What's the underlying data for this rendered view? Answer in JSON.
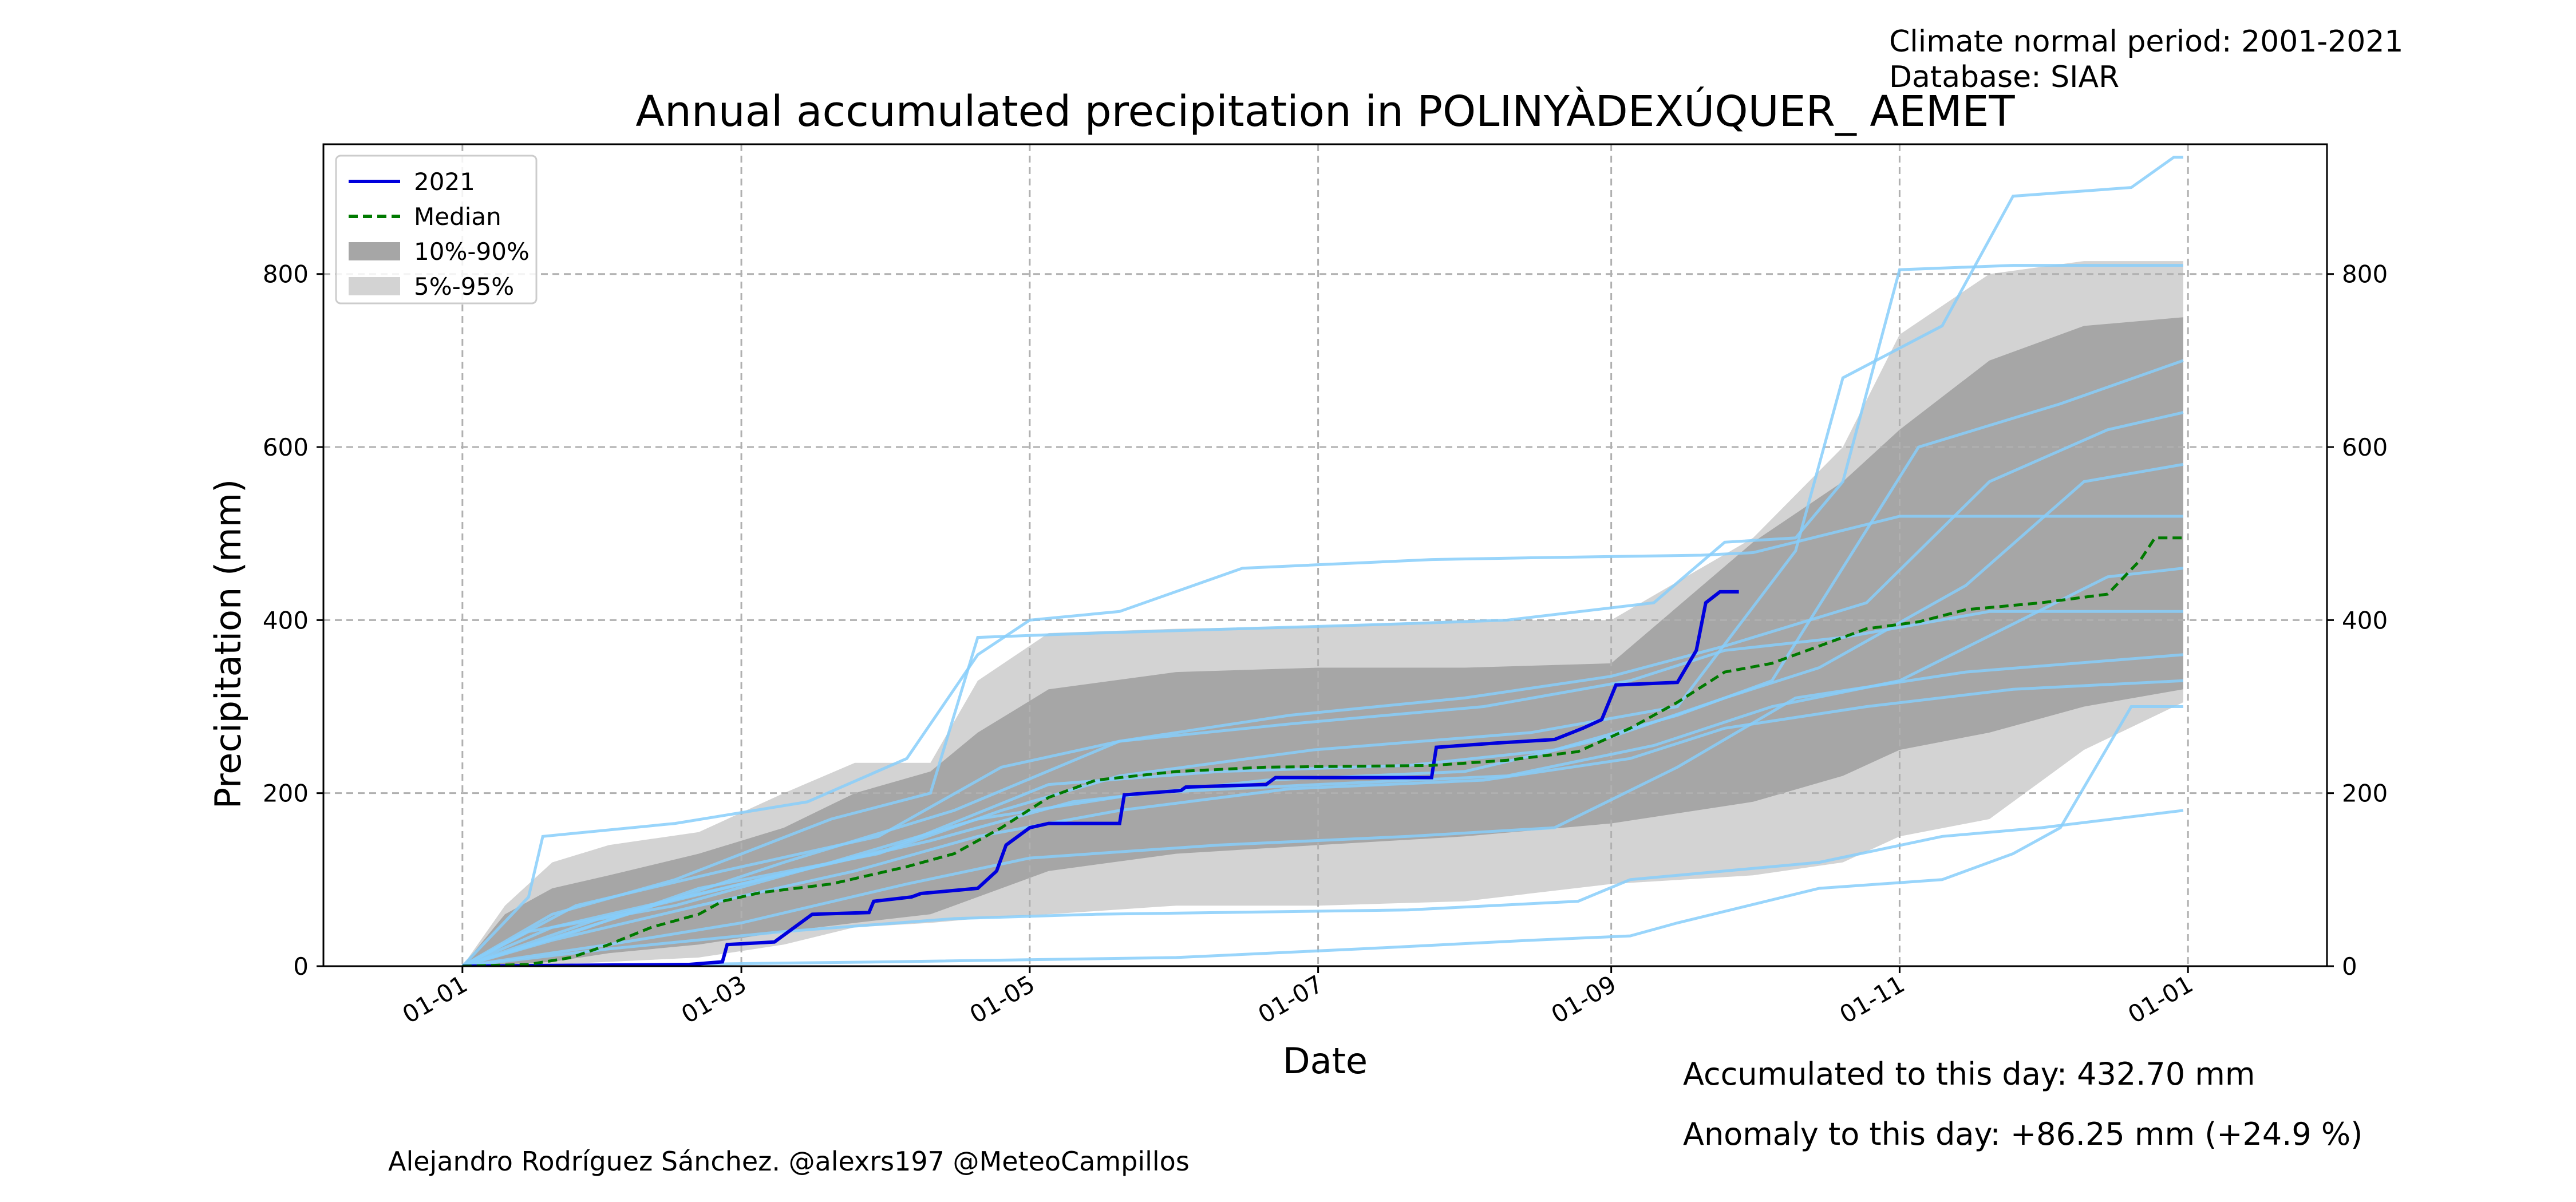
{
  "header": {
    "normal_period": "Climate normal period: 2001-2021",
    "database": "Database: SIAR"
  },
  "footer": {
    "accumulated": "Accumulated to this day: 432.70 mm",
    "anomaly": "Anomaly to this day: +86.25 mm (+24.9 %)",
    "credit": "Alejandro Rodríguez Sánchez. @alexrs197 @MeteoCampillos"
  },
  "colors": {
    "current_year": "#0000dd",
    "median": "#007a00",
    "band_10_90": "#a6a6a6",
    "band_5_95": "#d3d3d3",
    "historical_years": "#87cefa",
    "anomaly_text": "#0000ff"
  },
  "chart_data": {
    "type": "line",
    "title": "Annual accumulated precipitation in POLINYÀDEXÚQUER_ AEMET",
    "xlabel": "Date",
    "ylabel": "Precipitation (mm)",
    "xlim": [
      "2021-01-01",
      "2022-01-01"
    ],
    "ylim": [
      0,
      950
    ],
    "x_ticks": [
      "2021-01-01",
      "2021-03-01",
      "2021-05-01",
      "2021-07-01",
      "2021-09-01",
      "2021-11-01",
      "2022-01-01"
    ],
    "x_tick_labels": [
      "01-01",
      "01-03",
      "01-05",
      "01-07",
      "01-09",
      "01-11",
      "01-01"
    ],
    "y_ticks": [
      0,
      200,
      400,
      600,
      800
    ],
    "grid": true,
    "legend_position": "top-left",
    "legend": [
      "2021",
      "Median",
      "10%-90%",
      "5%-95%"
    ],
    "series": [
      {
        "name": "2021",
        "style": "solid",
        "points": [
          [
            "2021-01-01",
            0
          ],
          [
            "2021-02-18",
            2
          ],
          [
            "2021-02-25",
            5
          ],
          [
            "2021-02-26",
            25
          ],
          [
            "2021-03-08",
            28
          ],
          [
            "2021-03-16",
            60
          ],
          [
            "2021-03-28",
            62
          ],
          [
            "2021-03-29",
            75
          ],
          [
            "2021-04-06",
            80
          ],
          [
            "2021-04-08",
            84
          ],
          [
            "2021-04-20",
            90
          ],
          [
            "2021-04-24",
            110
          ],
          [
            "2021-04-26",
            140
          ],
          [
            "2021-05-01",
            160
          ],
          [
            "2021-05-05",
            165
          ],
          [
            "2021-05-20",
            165
          ],
          [
            "2021-05-21",
            198
          ],
          [
            "2021-06-02",
            203
          ],
          [
            "2021-06-03",
            207
          ],
          [
            "2021-06-20",
            210
          ],
          [
            "2021-06-22",
            218
          ],
          [
            "2021-07-25",
            218
          ],
          [
            "2021-07-26",
            253
          ],
          [
            "2021-08-08",
            258
          ],
          [
            "2021-08-20",
            262
          ],
          [
            "2021-08-26",
            275
          ],
          [
            "2021-08-30",
            285
          ],
          [
            "2021-09-02",
            325
          ],
          [
            "2021-09-15",
            328
          ],
          [
            "2021-09-19",
            365
          ],
          [
            "2021-09-21",
            420
          ],
          [
            "2021-09-24",
            432.7
          ],
          [
            "2021-09-28",
            432.7
          ]
        ]
      },
      {
        "name": "Median",
        "style": "dashed",
        "points": [
          [
            "2021-01-01",
            0
          ],
          [
            "2021-01-15",
            2
          ],
          [
            "2021-01-24",
            10
          ],
          [
            "2021-02-01",
            25
          ],
          [
            "2021-02-10",
            45
          ],
          [
            "2021-02-20",
            60
          ],
          [
            "2021-02-25",
            75
          ],
          [
            "2021-03-05",
            85
          ],
          [
            "2021-03-20",
            95
          ],
          [
            "2021-04-05",
            115
          ],
          [
            "2021-04-15",
            130
          ],
          [
            "2021-04-25",
            160
          ],
          [
            "2021-05-05",
            195
          ],
          [
            "2021-05-15",
            215
          ],
          [
            "2021-06-01",
            225
          ],
          [
            "2021-06-20",
            230
          ],
          [
            "2021-07-25",
            232
          ],
          [
            "2021-08-10",
            238
          ],
          [
            "2021-08-25",
            248
          ],
          [
            "2021-09-05",
            275
          ],
          [
            "2021-09-15",
            305
          ],
          [
            "2021-09-25",
            340
          ],
          [
            "2021-10-05",
            350
          ],
          [
            "2021-10-15",
            370
          ],
          [
            "2021-10-25",
            390
          ],
          [
            "2021-11-05",
            398
          ],
          [
            "2021-11-15",
            412
          ],
          [
            "2021-12-01",
            420
          ],
          [
            "2021-12-15",
            430
          ],
          [
            "2021-12-22",
            470
          ],
          [
            "2021-12-25",
            495
          ],
          [
            "2021-12-31",
            495
          ]
        ]
      }
    ],
    "bands": [
      {
        "name": "5%-95%",
        "points": [
          [
            "2021-01-01",
            0,
            0
          ],
          [
            "2021-01-10",
            0,
            70
          ],
          [
            "2021-01-20",
            2,
            120
          ],
          [
            "2021-02-01",
            5,
            140
          ],
          [
            "2021-02-20",
            10,
            155
          ],
          [
            "2021-03-10",
            25,
            200
          ],
          [
            "2021-03-25",
            45,
            235
          ],
          [
            "2021-04-10",
            50,
            235
          ],
          [
            "2021-04-20",
            55,
            330
          ],
          [
            "2021-05-05",
            60,
            385
          ],
          [
            "2021-06-01",
            70,
            390
          ],
          [
            "2021-07-01",
            70,
            393
          ],
          [
            "2021-08-01",
            75,
            400
          ],
          [
            "2021-09-01",
            95,
            400
          ],
          [
            "2021-10-01",
            105,
            495
          ],
          [
            "2021-10-20",
            120,
            600
          ],
          [
            "2021-11-01",
            150,
            730
          ],
          [
            "2021-11-20",
            170,
            800
          ],
          [
            "2021-12-10",
            250,
            815
          ],
          [
            "2021-12-31",
            305,
            815
          ]
        ]
      },
      {
        "name": "10%-90%",
        "points": [
          [
            "2021-01-01",
            0,
            0
          ],
          [
            "2021-01-10",
            2,
            60
          ],
          [
            "2021-01-20",
            5,
            90
          ],
          [
            "2021-02-01",
            15,
            105
          ],
          [
            "2021-02-20",
            25,
            130
          ],
          [
            "2021-03-10",
            40,
            160
          ],
          [
            "2021-03-25",
            50,
            200
          ],
          [
            "2021-04-10",
            60,
            225
          ],
          [
            "2021-04-20",
            80,
            270
          ],
          [
            "2021-05-05",
            110,
            320
          ],
          [
            "2021-06-01",
            130,
            340
          ],
          [
            "2021-07-01",
            140,
            345
          ],
          [
            "2021-08-01",
            150,
            345
          ],
          [
            "2021-09-01",
            165,
            350
          ],
          [
            "2021-10-01",
            190,
            490
          ],
          [
            "2021-10-20",
            220,
            560
          ],
          [
            "2021-11-01",
            250,
            620
          ],
          [
            "2021-11-20",
            270,
            700
          ],
          [
            "2021-12-10",
            300,
            740
          ],
          [
            "2021-12-31",
            320,
            750
          ]
        ]
      }
    ],
    "historical_lines": [
      [
        [
          "2021-01-01",
          0
        ],
        [
          "2021-01-15",
          80
        ],
        [
          "2021-01-18",
          150
        ],
        [
          "2021-02-15",
          165
        ],
        [
          "2021-03-15",
          190
        ],
        [
          "2021-04-05",
          240
        ],
        [
          "2021-04-20",
          360
        ],
        [
          "2021-05-01",
          400
        ],
        [
          "2021-05-20",
          410
        ],
        [
          "2021-06-15",
          460
        ],
        [
          "2021-07-25",
          470
        ],
        [
          "2021-08-15",
          472
        ],
        [
          "2021-09-20",
          475
        ],
        [
          "2021-10-01",
          478
        ],
        [
          "2021-11-01",
          520
        ],
        [
          "2021-12-31",
          520
        ]
      ],
      [
        [
          "2021-01-01",
          0
        ],
        [
          "2021-01-20",
          60
        ],
        [
          "2021-02-15",
          100
        ],
        [
          "2021-03-20",
          170
        ],
        [
          "2021-04-10",
          200
        ],
        [
          "2021-04-20",
          380
        ],
        [
          "2021-05-15",
          385
        ],
        [
          "2021-07-15",
          395
        ],
        [
          "2021-08-10",
          400
        ],
        [
          "2021-09-10",
          420
        ],
        [
          "2021-09-25",
          490
        ],
        [
          "2021-10-10",
          495
        ],
        [
          "2021-10-20",
          560
        ],
        [
          "2021-11-01",
          805
        ],
        [
          "2021-11-25",
          810
        ],
        [
          "2021-12-31",
          810
        ]
      ],
      [
        [
          "2021-01-01",
          0
        ],
        [
          "2021-01-25",
          40
        ],
        [
          "2021-02-20",
          90
        ],
        [
          "2021-03-30",
          130
        ],
        [
          "2021-04-25",
          180
        ],
        [
          "2021-05-20",
          220
        ],
        [
          "2021-06-30",
          250
        ],
        [
          "2021-08-15",
          270
        ],
        [
          "2021-09-15",
          300
        ],
        [
          "2021-10-10",
          480
        ],
        [
          "2021-10-20",
          680
        ],
        [
          "2021-11-10",
          740
        ],
        [
          "2021-11-25",
          890
        ],
        [
          "2021-12-20",
          900
        ],
        [
          "2021-12-29",
          935
        ],
        [
          "2021-12-31",
          935
        ]
      ],
      [
        [
          "2021-01-01",
          0
        ],
        [
          "2021-02-01",
          20
        ],
        [
          "2021-03-10",
          40
        ],
        [
          "2021-04-15",
          55
        ],
        [
          "2021-05-15",
          60
        ],
        [
          "2021-07-20",
          65
        ],
        [
          "2021-08-25",
          75
        ],
        [
          "2021-09-05",
          100
        ],
        [
          "2021-10-15",
          120
        ],
        [
          "2021-11-10",
          150
        ],
        [
          "2021-12-01",
          160
        ],
        [
          "2021-12-31",
          180
        ]
      ],
      [
        [
          "2021-01-01",
          0
        ],
        [
          "2021-02-15",
          2
        ],
        [
          "2021-04-01",
          5
        ],
        [
          "2021-06-01",
          10
        ],
        [
          "2021-07-10",
          20
        ],
        [
          "2021-08-15",
          30
        ],
        [
          "2021-09-05",
          35
        ],
        [
          "2021-09-15",
          50
        ],
        [
          "2021-10-15",
          90
        ],
        [
          "2021-11-10",
          100
        ],
        [
          "2021-11-25",
          130
        ],
        [
          "2021-12-05",
          160
        ],
        [
          "2021-12-20",
          300
        ],
        [
          "2021-12-31",
          300
        ]
      ],
      [
        [
          "2021-01-01",
          0
        ],
        [
          "2021-01-20",
          30
        ],
        [
          "2021-02-20",
          70
        ],
        [
          "2021-03-25",
          110
        ],
        [
          "2021-04-20",
          150
        ],
        [
          "2021-05-20",
          180
        ],
        [
          "2021-06-25",
          205
        ],
        [
          "2021-08-05",
          215
        ],
        [
          "2021-09-05",
          240
        ],
        [
          "2021-09-25",
          275
        ],
        [
          "2021-10-25",
          300
        ],
        [
          "2021-11-25",
          320
        ],
        [
          "2021-12-31",
          330
        ]
      ],
      [
        [
          "2021-01-01",
          0
        ],
        [
          "2021-01-25",
          70
        ],
        [
          "2021-02-25",
          110
        ],
        [
          "2021-03-30",
          150
        ],
        [
          "2021-04-25",
          230
        ],
        [
          "2021-05-20",
          260
        ],
        [
          "2021-06-25",
          280
        ],
        [
          "2021-08-05",
          300
        ],
        [
          "2021-09-05",
          330
        ],
        [
          "2021-09-25",
          365
        ],
        [
          "2021-10-20",
          380
        ],
        [
          "2021-11-20",
          410
        ],
        [
          "2021-12-31",
          410
        ]
      ],
      [
        [
          "2021-01-01",
          0
        ],
        [
          "2021-02-01",
          25
        ],
        [
          "2021-03-01",
          50
        ],
        [
          "2021-04-05",
          95
        ],
        [
          "2021-05-01",
          125
        ],
        [
          "2021-06-10",
          140
        ],
        [
          "2021-07-20",
          150
        ],
        [
          "2021-08-20",
          160
        ],
        [
          "2021-09-15",
          230
        ],
        [
          "2021-10-10",
          310
        ],
        [
          "2021-11-15",
          340
        ],
        [
          "2021-12-31",
          360
        ]
      ],
      [
        [
          "2021-01-01",
          0
        ],
        [
          "2021-01-20",
          45
        ],
        [
          "2021-02-25",
          90
        ],
        [
          "2021-04-01",
          135
        ],
        [
          "2021-05-05",
          210
        ],
        [
          "2021-06-10",
          225
        ],
        [
          "2021-07-20",
          232
        ],
        [
          "2021-08-20",
          250
        ],
        [
          "2021-09-15",
          290
        ],
        [
          "2021-10-05",
          330
        ],
        [
          "2021-11-05",
          600
        ],
        [
          "2021-12-05",
          650
        ],
        [
          "2021-12-31",
          700
        ]
      ],
      [
        [
          "2021-01-01",
          0
        ],
        [
          "2021-01-30",
          55
        ],
        [
          "2021-03-05",
          100
        ],
        [
          "2021-04-10",
          145
        ],
        [
          "2021-05-10",
          190
        ],
        [
          "2021-06-20",
          215
        ],
        [
          "2021-08-01",
          225
        ],
        [
          "2021-09-01",
          265
        ],
        [
          "2021-09-25",
          310
        ],
        [
          "2021-10-15",
          345
        ],
        [
          "2021-11-15",
          440
        ],
        [
          "2021-12-10",
          560
        ],
        [
          "2021-12-31",
          580
        ]
      ],
      [
        [
          "2021-01-01",
          0
        ],
        [
          "2021-01-15",
          40
        ],
        [
          "2021-02-15",
          70
        ],
        [
          "2021-03-20",
          120
        ],
        [
          "2021-04-20",
          170
        ],
        [
          "2021-05-25",
          200
        ],
        [
          "2021-07-01",
          210
        ],
        [
          "2021-08-10",
          220
        ],
        [
          "2021-09-10",
          255
        ],
        [
          "2021-10-05",
          300
        ],
        [
          "2021-11-01",
          330
        ],
        [
          "2021-12-15",
          450
        ],
        [
          "2021-12-31",
          460
        ]
      ],
      [
        [
          "2021-01-01",
          0
        ],
        [
          "2021-02-05",
          60
        ],
        [
          "2021-03-10",
          120
        ],
        [
          "2021-04-15",
          180
        ],
        [
          "2021-05-20",
          260
        ],
        [
          "2021-06-25",
          290
        ],
        [
          "2021-08-01",
          310
        ],
        [
          "2021-09-01",
          335
        ],
        [
          "2021-09-25",
          370
        ],
        [
          "2021-10-25",
          420
        ],
        [
          "2021-11-20",
          560
        ],
        [
          "2021-12-15",
          620
        ],
        [
          "2021-12-31",
          640
        ]
      ]
    ]
  }
}
